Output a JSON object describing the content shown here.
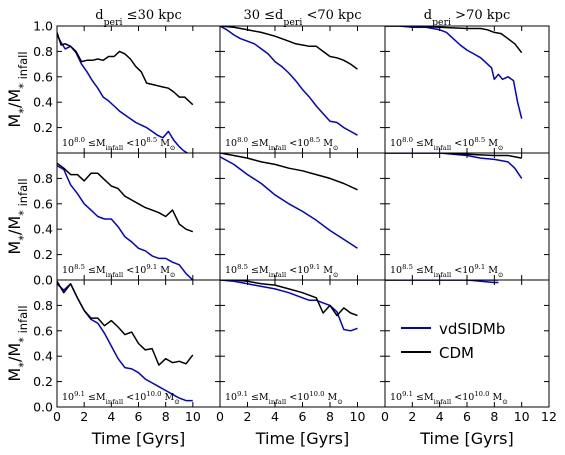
{
  "chart_data": {
    "type": "line",
    "grid": false,
    "legend_placement": "inside-bottom-right-panel",
    "column_titles": [
      "d_peri ≤30 kpc",
      "30 ≤d_peri <70 kpc",
      "d_peri >70 kpc"
    ],
    "ylabel": "M*/M* infall",
    "xlabel": "Time [Gyrs]",
    "xlim": [
      0,
      12
    ],
    "ylim": [
      0,
      1.0
    ],
    "xticks": [
      "0",
      "2",
      "4",
      "6",
      "8",
      "10",
      "12"
    ],
    "yticks_top_row": [
      "0.2",
      "0.4",
      "0.6",
      "0.8",
      "1.0"
    ],
    "yticks_other_rows": [
      "0.0",
      "0.2",
      "0.4",
      "0.6",
      "0.8"
    ],
    "row_notes": [
      "10^8.0 ≤M_infall <10^8.5 M_⊙",
      "10^8.5 ≤M_infall <10^9.1 M_⊙",
      "10^9.1 ≤M_infall <10^10.0 M_⊙"
    ],
    "legend": [
      {
        "name": "vdSIDMb",
        "color": "#0000dd"
      },
      {
        "name": "CDM",
        "color": "#000000"
      }
    ],
    "panels": [
      {
        "row": 0,
        "col": 0,
        "series": [
          {
            "name": "vdSIDMb",
            "color": "#0000dd",
            "x": [
              0,
              0.3,
              0.6,
              1,
              1.4,
              1.8,
              2.2,
              2.6,
              3,
              3.4,
              3.8,
              4.2,
              4.6,
              5,
              5.4,
              5.8,
              6.2,
              6.6,
              7,
              7.4,
              7.8,
              8.2,
              8.6,
              9,
              9.3,
              9.6
            ],
            "y": [
              0.93,
              0.87,
              0.82,
              0.84,
              0.79,
              0.7,
              0.64,
              0.57,
              0.51,
              0.44,
              0.41,
              0.37,
              0.33,
              0.3,
              0.27,
              0.24,
              0.22,
              0.2,
              0.17,
              0.14,
              0.12,
              0.17,
              0.1,
              0.05,
              0.02,
              0.0
            ]
          },
          {
            "name": "CDM",
            "color": "#000000",
            "x": [
              0,
              0.3,
              0.6,
              1,
              1.4,
              1.8,
              2.2,
              2.6,
              3,
              3.4,
              3.8,
              4.2,
              4.6,
              5,
              5.4,
              5.8,
              6.2,
              6.6,
              7,
              7.4,
              7.8,
              8.2,
              8.6,
              9,
              9.4,
              9.8,
              10
            ],
            "y": [
              0.95,
              0.85,
              0.86,
              0.84,
              0.8,
              0.72,
              0.73,
              0.73,
              0.74,
              0.73,
              0.76,
              0.76,
              0.8,
              0.78,
              0.74,
              0.68,
              0.64,
              0.55,
              0.54,
              0.53,
              0.52,
              0.51,
              0.48,
              0.44,
              0.44,
              0.4,
              0.38
            ]
          }
        ]
      },
      {
        "row": 0,
        "col": 1,
        "series": [
          {
            "name": "vdSIDMb",
            "color": "#0000dd",
            "x": [
              0,
              0.5,
              1,
              1.5,
              2,
              2.5,
              3,
              3.5,
              4,
              4.5,
              5,
              5.5,
              6,
              6.5,
              7,
              7.5,
              8,
              8.5,
              9,
              9.5,
              10
            ],
            "y": [
              1.0,
              0.97,
              0.93,
              0.9,
              0.88,
              0.86,
              0.82,
              0.78,
              0.72,
              0.68,
              0.63,
              0.57,
              0.5,
              0.44,
              0.37,
              0.31,
              0.25,
              0.24,
              0.2,
              0.17,
              0.14
            ]
          },
          {
            "name": "CDM",
            "color": "#000000",
            "x": [
              0,
              1,
              2,
              3,
              4,
              5,
              5.5,
              6,
              6.5,
              7,
              7.5,
              8,
              8.5,
              9,
              9.5,
              10
            ],
            "y": [
              1.0,
              0.99,
              0.97,
              0.95,
              0.92,
              0.88,
              0.86,
              0.85,
              0.84,
              0.84,
              0.8,
              0.76,
              0.75,
              0.73,
              0.7,
              0.66
            ]
          }
        ]
      },
      {
        "row": 0,
        "col": 2,
        "series": [
          {
            "name": "vdSIDMb",
            "color": "#0000dd",
            "x": [
              0,
              1,
              2,
              3,
              4,
              4.5,
              5,
              5.5,
              6,
              6.5,
              7,
              7.5,
              7.8,
              8,
              8.3,
              8.6,
              9,
              9.4,
              9.7,
              10
            ],
            "y": [
              1.0,
              1.0,
              0.99,
              0.99,
              0.97,
              0.95,
              0.9,
              0.85,
              0.81,
              0.78,
              0.75,
              0.7,
              0.67,
              0.58,
              0.62,
              0.58,
              0.6,
              0.57,
              0.4,
              0.27
            ]
          },
          {
            "name": "CDM",
            "color": "#000000",
            "x": [
              0,
              2,
              4,
              6,
              7,
              7.5,
              8,
              8.5,
              9,
              9.5,
              10
            ],
            "y": [
              1.0,
              1.0,
              0.99,
              0.98,
              0.98,
              0.97,
              0.95,
              0.94,
              0.9,
              0.86,
              0.79
            ]
          }
        ]
      },
      {
        "row": 1,
        "col": 0,
        "series": [
          {
            "name": "vdSIDMb",
            "color": "#0000dd",
            "x": [
              0,
              0.5,
              1,
              1.5,
              2,
              2.5,
              3,
              3.5,
              4,
              4.5,
              5,
              5.5,
              6,
              6.5,
              7,
              7.5,
              8,
              8.5,
              9,
              9.5,
              10
            ],
            "y": [
              0.9,
              0.87,
              0.75,
              0.68,
              0.6,
              0.55,
              0.5,
              0.48,
              0.48,
              0.42,
              0.34,
              0.3,
              0.25,
              0.23,
              0.19,
              0.17,
              0.17,
              0.14,
              0.12,
              0.05,
              0.0
            ]
          },
          {
            "name": "CDM",
            "color": "#000000",
            "x": [
              0,
              0.5,
              1,
              1.5,
              2,
              2.5,
              3,
              3.5,
              4,
              4.5,
              5,
              5.5,
              6,
              6.5,
              7,
              7.5,
              8,
              8.5,
              9,
              9.5,
              10
            ],
            "y": [
              0.92,
              0.88,
              0.83,
              0.83,
              0.78,
              0.84,
              0.84,
              0.79,
              0.74,
              0.72,
              0.66,
              0.63,
              0.6,
              0.57,
              0.55,
              0.53,
              0.5,
              0.55,
              0.44,
              0.4,
              0.38
            ]
          }
        ]
      },
      {
        "row": 1,
        "col": 1,
        "series": [
          {
            "name": "vdSIDMb",
            "color": "#0000dd",
            "x": [
              0,
              1,
              2,
              3,
              4,
              5,
              6,
              7,
              8,
              9,
              10
            ],
            "y": [
              0.97,
              0.91,
              0.83,
              0.76,
              0.67,
              0.6,
              0.54,
              0.47,
              0.39,
              0.32,
              0.25
            ]
          },
          {
            "name": "CDM",
            "color": "#000000",
            "x": [
              0,
              1,
              2,
              3,
              4,
              5,
              6,
              7,
              8,
              9,
              10
            ],
            "y": [
              1.0,
              0.98,
              0.96,
              0.93,
              0.91,
              0.88,
              0.86,
              0.83,
              0.8,
              0.76,
              0.71
            ]
          }
        ]
      },
      {
        "row": 1,
        "col": 2,
        "series": [
          {
            "name": "vdSIDMb",
            "color": "#0000dd",
            "x": [
              0,
              2,
              4,
              6,
              7,
              8,
              8.5,
              9,
              9.5,
              10
            ],
            "y": [
              1.0,
              1.0,
              1.0,
              0.98,
              0.96,
              0.95,
              0.94,
              0.93,
              0.88,
              0.8
            ]
          },
          {
            "name": "CDM",
            "color": "#000000",
            "x": [
              0,
              2,
              4,
              6,
              8,
              9,
              10
            ],
            "y": [
              1.0,
              1.0,
              1.0,
              0.99,
              0.98,
              0.98,
              0.96
            ]
          }
        ]
      },
      {
        "row": 2,
        "col": 0,
        "series": [
          {
            "name": "vdSIDMb",
            "color": "#0000dd",
            "x": [
              0,
              0.5,
              1,
              1.5,
              2,
              2.5,
              3,
              3.5,
              4,
              4.5,
              5,
              5.5,
              6,
              6.5,
              7,
              7.5,
              8,
              8.5,
              9,
              9.5,
              10
            ],
            "y": [
              0.97,
              0.92,
              0.97,
              0.86,
              0.76,
              0.69,
              0.66,
              0.58,
              0.48,
              0.38,
              0.31,
              0.3,
              0.27,
              0.22,
              0.19,
              0.16,
              0.13,
              0.1,
              0.07,
              0.05,
              0.05
            ]
          },
          {
            "name": "CDM",
            "color": "#000000",
            "x": [
              0,
              0.5,
              1,
              1.5,
              2,
              2.5,
              3,
              3.5,
              4,
              4.5,
              5,
              5.5,
              6,
              6.5,
              7,
              7.5,
              8,
              8.5,
              9,
              9.5,
              10
            ],
            "y": [
              0.99,
              0.9,
              0.97,
              0.86,
              0.76,
              0.7,
              0.7,
              0.64,
              0.68,
              0.63,
              0.57,
              0.59,
              0.5,
              0.45,
              0.46,
              0.33,
              0.38,
              0.35,
              0.36,
              0.34,
              0.41
            ]
          }
        ]
      },
      {
        "row": 2,
        "col": 1,
        "series": [
          {
            "name": "vdSIDMb",
            "color": "#0000dd",
            "x": [
              0,
              1,
              2,
              3,
              4,
              5,
              6,
              6.5,
              7,
              7.5,
              8,
              8.5,
              9,
              9.5,
              10
            ],
            "y": [
              1.0,
              0.99,
              0.97,
              0.95,
              0.93,
              0.9,
              0.86,
              0.84,
              0.84,
              0.82,
              0.8,
              0.75,
              0.61,
              0.6,
              0.62
            ]
          },
          {
            "name": "CDM",
            "color": "#000000",
            "x": [
              0,
              1,
              2,
              3,
              4,
              5,
              6,
              7,
              7.5,
              8,
              8.5,
              9,
              9.5,
              10
            ],
            "y": [
              1.0,
              1.0,
              0.99,
              0.97,
              0.96,
              0.93,
              0.9,
              0.86,
              0.74,
              0.8,
              0.72,
              0.78,
              0.74,
              0.72
            ]
          }
        ]
      },
      {
        "row": 2,
        "col": 2,
        "series": [
          {
            "name": "vdSIDMb",
            "color": "#0000dd",
            "x": [
              0,
              2,
              4,
              6,
              7,
              8,
              8.3
            ],
            "y": [
              1.0,
              1.0,
              1.0,
              1.0,
              0.99,
              0.98,
              0.98
            ]
          },
          {
            "name": "CDM",
            "color": "#000000",
            "x": [
              0,
              2,
              4,
              6,
              8,
              8.3
            ],
            "y": [
              1.0,
              1.0,
              1.0,
              1.0,
              1.0,
              1.0
            ]
          }
        ]
      }
    ]
  }
}
